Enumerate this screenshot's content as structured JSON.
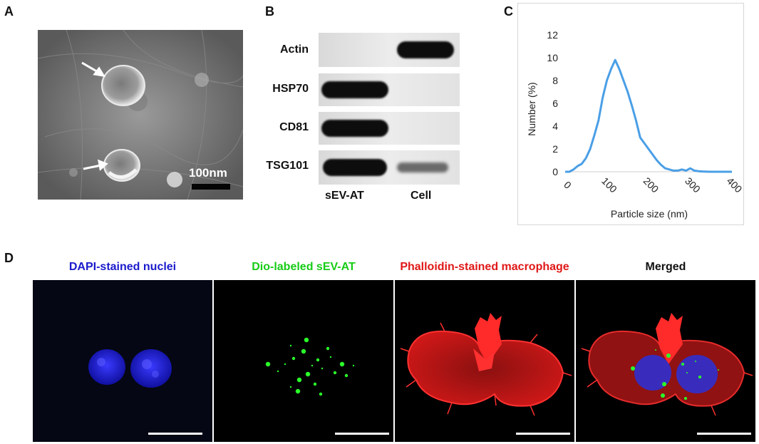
{
  "panel_letters": {
    "a": "A",
    "b": "B",
    "c": "C",
    "d": "D"
  },
  "panel_a": {
    "scale_label": "100nm"
  },
  "panel_b": {
    "rows": [
      {
        "label": "Actin"
      },
      {
        "label": "HSP70"
      },
      {
        "label": "CD81"
      },
      {
        "label": "TSG101"
      }
    ],
    "lanes": [
      "sEV-AT",
      "Cell"
    ]
  },
  "chart_data": {
    "type": "line",
    "xlabel": "Particle size (nm)",
    "ylabel": "Number (%)",
    "xlim": [
      0,
      400
    ],
    "ylim": [
      0,
      12
    ],
    "xticks": [
      0,
      100,
      200,
      300,
      400
    ],
    "yticks": [
      0,
      2,
      4,
      6,
      8,
      10,
      12
    ],
    "grid": false,
    "line_color": "#4a9fe6",
    "series": [
      {
        "x": [
          0,
          10,
          20,
          30,
          40,
          50,
          60,
          70,
          80,
          90,
          100,
          110,
          120,
          130,
          140,
          150,
          160,
          170,
          180,
          190,
          200,
          210,
          220,
          230,
          240,
          250,
          260,
          270,
          280,
          290,
          300,
          310,
          320,
          330,
          340,
          350,
          360,
          370,
          380,
          390,
          400
        ],
        "values": [
          0,
          0,
          0.2,
          0.5,
          0.7,
          1.2,
          2.0,
          3.2,
          4.5,
          6.5,
          8.0,
          9.0,
          9.8,
          9.0,
          8.0,
          7.0,
          5.8,
          4.5,
          3.0,
          2.5,
          2.0,
          1.5,
          1.0,
          0.6,
          0.3,
          0.2,
          0.1,
          0.1,
          0.2,
          0.1,
          0.3,
          0.1,
          0.05,
          0.02,
          0.01,
          0,
          0,
          0,
          0,
          0,
          0
        ]
      }
    ]
  },
  "panel_d": {
    "titles": [
      {
        "text": "DAPI-stained nuclei",
        "color": "#1a1acc"
      },
      {
        "text": "Dio-labeled sEV-AT",
        "color": "#16cc16"
      },
      {
        "text": "Phalloidin-stained macrophage",
        "color": "#e01818"
      },
      {
        "text": "Merged",
        "color": "#111111"
      }
    ]
  }
}
